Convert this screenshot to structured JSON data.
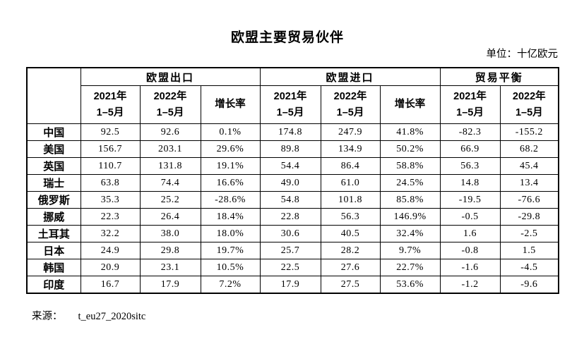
{
  "title": "欧盟主要贸易伙伴",
  "unit_label": "单位：十亿欧元",
  "colors": {
    "text": "#000000",
    "border": "#000000",
    "background": "#ffffff"
  },
  "table": {
    "groups": [
      {
        "label": "欧盟出口",
        "span": 3
      },
      {
        "label": "欧盟进口",
        "span": 3
      },
      {
        "label": "贸易平衡",
        "span": 2
      }
    ],
    "subheaders": [
      "2021年\n1–5月",
      "2022年\n1–5月",
      "增长率",
      "2021年\n1–5月",
      "2022年\n1–5月",
      "增长率",
      "2021年\n1–5月",
      "2022年\n1–5月"
    ],
    "rows": [
      {
        "label": "中国",
        "values": [
          "92.5",
          "92.6",
          "0.1%",
          "174.8",
          "247.9",
          "41.8%",
          "-82.3",
          "-155.2"
        ]
      },
      {
        "label": "美国",
        "values": [
          "156.7",
          "203.1",
          "29.6%",
          "89.8",
          "134.9",
          "50.2%",
          "66.9",
          "68.2"
        ]
      },
      {
        "label": "英国",
        "values": [
          "110.7",
          "131.8",
          "19.1%",
          "54.4",
          "86.4",
          "58.8%",
          "56.3",
          "45.4"
        ]
      },
      {
        "label": "瑞士",
        "values": [
          "63.8",
          "74.4",
          "16.6%",
          "49.0",
          "61.0",
          "24.5%",
          "14.8",
          "13.4"
        ]
      },
      {
        "label": "俄罗斯",
        "values": [
          "35.3",
          "25.2",
          "-28.6%",
          "54.8",
          "101.8",
          "85.8%",
          "-19.5",
          "-76.6"
        ]
      },
      {
        "label": "挪威",
        "values": [
          "22.3",
          "26.4",
          "18.4%",
          "22.8",
          "56.3",
          "146.9%",
          "-0.5",
          "-29.8"
        ]
      },
      {
        "label": "土耳其",
        "values": [
          "32.2",
          "38.0",
          "18.0%",
          "30.6",
          "40.5",
          "32.4%",
          "1.6",
          "-2.5"
        ]
      },
      {
        "label": "日本",
        "values": [
          "24.9",
          "29.8",
          "19.7%",
          "25.7",
          "28.2",
          "9.7%",
          "-0.8",
          "1.5"
        ]
      },
      {
        "label": "韩国",
        "values": [
          "20.9",
          "23.1",
          "10.5%",
          "22.5",
          "27.6",
          "22.7%",
          "-1.6",
          "-4.5"
        ]
      },
      {
        "label": "印度",
        "values": [
          "16.7",
          "17.9",
          "7.2%",
          "17.9",
          "27.5",
          "53.6%",
          "-1.2",
          "-9.6"
        ]
      }
    ]
  },
  "source": {
    "label": "来源：",
    "value": "t_eu27_2020sitc"
  }
}
